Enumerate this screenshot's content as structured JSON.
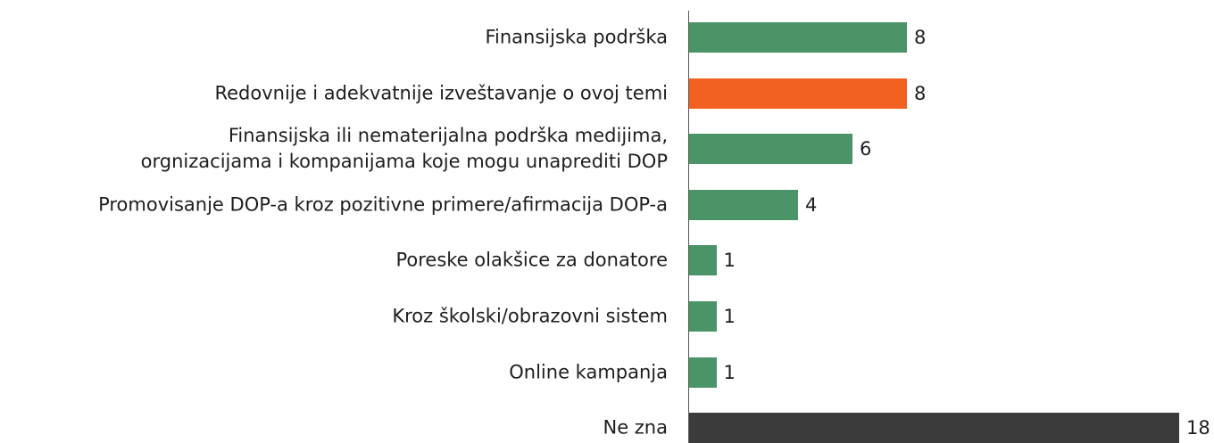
{
  "chart_data": {
    "type": "barh",
    "categories": [
      "Finansijska podrška",
      "Redovnije i adekvatnije izveštavanje o ovoj temi",
      "Finansijska ili nematerijalna podrška medijima,\norgnizacijama i kompanijama koje mogu unaprediti DOP",
      "Promovisanje DOP-a kroz pozitivne primere/afirmacija DOP-a",
      "Poreske olakšice za donatore",
      "Kroz školski/obrazovni sistem",
      "Online kampanja",
      "Ne zna"
    ],
    "values": [
      8,
      8,
      6,
      4,
      1,
      1,
      1,
      18
    ],
    "colors": [
      "#4a9468",
      "#f26122",
      "#4a9468",
      "#4a9468",
      "#4a9468",
      "#4a9468",
      "#4a9468",
      "#3b3b3b"
    ]
  }
}
